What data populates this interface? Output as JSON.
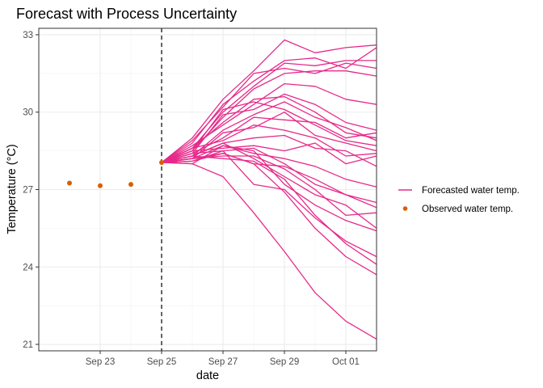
{
  "chart_data": {
    "type": "line",
    "title": "Forecast with Process Uncertainty",
    "xlabel": "date",
    "ylabel": "Temperature (°C)",
    "x_type": "date",
    "xlim": [
      "2020-09-21",
      "2020-10-02"
    ],
    "ylim": [
      20.75,
      33.25
    ],
    "x_ticks": [
      {
        "date": "2020-09-23",
        "label": "Sep 23"
      },
      {
        "date": "2020-09-25",
        "label": "Sep 25"
      },
      {
        "date": "2020-09-27",
        "label": "Sep 27"
      },
      {
        "date": "2020-09-29",
        "label": "Sep 29"
      },
      {
        "date": "2020-10-01",
        "label": "Oct 01"
      }
    ],
    "y_ticks": [
      21,
      24,
      27,
      30,
      33
    ],
    "grid": true,
    "legend_position": "right",
    "forecast_start": "2020-09-25",
    "legend": [
      {
        "label": "Forecasted water temp.",
        "kind": "line",
        "color": "#e7298a"
      },
      {
        "label": "Observed water temp.",
        "kind": "point",
        "color": "#d95f02"
      }
    ],
    "observed": {
      "name": "Observed water temp.",
      "color": "#d95f02",
      "points": [
        {
          "x": "2020-09-22",
          "y": 27.25
        },
        {
          "x": "2020-09-23",
          "y": 27.15
        },
        {
          "x": "2020-09-24",
          "y": 27.2
        },
        {
          "x": "2020-09-25",
          "y": 28.05
        }
      ]
    },
    "forecast": {
      "name": "Forecasted water temp.",
      "color": "#e7298a",
      "x": [
        "2020-09-25",
        "2020-09-26",
        "2020-09-27",
        "2020-09-28",
        "2020-09-29",
        "2020-09-30",
        "2020-10-01",
        "2020-10-02"
      ],
      "ensemble": [
        [
          28.05,
          29.0,
          30.5,
          31.6,
          32.8,
          32.3,
          32.5,
          32.6
        ],
        [
          28.05,
          28.8,
          30.3,
          31.2,
          32.0,
          32.1,
          31.7,
          32.5
        ],
        [
          28.05,
          28.6,
          30.0,
          31.0,
          31.9,
          31.8,
          32.0,
          32.0
        ],
        [
          28.05,
          28.9,
          30.2,
          31.5,
          31.7,
          31.5,
          31.9,
          31.7
        ],
        [
          28.05,
          28.5,
          29.8,
          30.9,
          31.5,
          31.6,
          31.6,
          31.4
        ],
        [
          28.05,
          28.7,
          29.5,
          30.3,
          31.1,
          31.0,
          30.5,
          30.3
        ],
        [
          28.05,
          28.4,
          29.9,
          30.1,
          30.7,
          30.3,
          29.6,
          29.3
        ],
        [
          28.05,
          28.6,
          29.6,
          30.5,
          30.6,
          30.0,
          29.2,
          29.0
        ],
        [
          28.05,
          28.3,
          29.3,
          29.9,
          30.4,
          29.8,
          29.4,
          28.9
        ],
        [
          28.05,
          28.5,
          30.1,
          30.4,
          30.1,
          29.5,
          28.9,
          28.7
        ],
        [
          28.05,
          28.2,
          29.2,
          29.4,
          30.0,
          29.1,
          28.8,
          28.5
        ],
        [
          28.05,
          28.4,
          29.0,
          29.8,
          29.7,
          29.6,
          29.0,
          29.2
        ],
        [
          28.05,
          28.6,
          28.9,
          29.5,
          29.3,
          29.0,
          28.3,
          28.4
        ],
        [
          28.05,
          28.3,
          28.8,
          29.0,
          29.1,
          28.6,
          28.5,
          27.9
        ],
        [
          28.05,
          28.5,
          28.6,
          28.7,
          28.5,
          28.8,
          28.0,
          28.3
        ],
        [
          28.05,
          28.2,
          28.7,
          28.4,
          28.2,
          27.9,
          27.4,
          27.1
        ],
        [
          28.05,
          28.4,
          28.5,
          28.6,
          28.0,
          27.2,
          26.8,
          26.3
        ],
        [
          28.05,
          28.1,
          28.4,
          28.0,
          27.9,
          27.4,
          26.8,
          26.5
        ],
        [
          28.05,
          28.3,
          28.8,
          28.2,
          27.5,
          26.8,
          26.4,
          25.5
        ],
        [
          28.05,
          28.2,
          28.3,
          28.3,
          27.8,
          27.0,
          26.0,
          26.1
        ],
        [
          28.05,
          28.0,
          28.7,
          28.5,
          27.2,
          26.4,
          25.8,
          25.4
        ],
        [
          28.05,
          28.1,
          28.5,
          27.2,
          27.0,
          25.9,
          25.0,
          24.4
        ],
        [
          28.05,
          28.2,
          28.4,
          28.0,
          26.9,
          25.5,
          24.4,
          23.7
        ],
        [
          28.05,
          28.3,
          28.2,
          28.1,
          27.4,
          26.0,
          24.9,
          24.1
        ],
        [
          28.05,
          28.0,
          27.5,
          26.1,
          24.6,
          23.0,
          21.9,
          21.2
        ]
      ]
    }
  }
}
